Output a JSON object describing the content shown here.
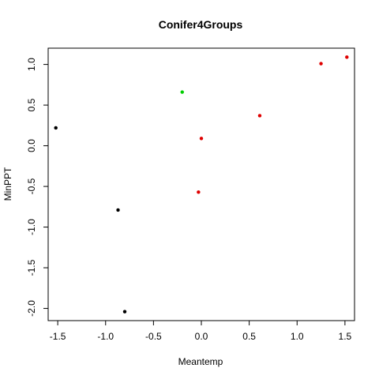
{
  "chart_data": {
    "type": "scatter",
    "title": "Conifer4Groups",
    "xlabel": "Meantemp",
    "ylabel": "MinPPT",
    "xlim": [
      -1.6,
      1.6
    ],
    "ylim": [
      -2.15,
      1.2
    ],
    "x_ticks": [
      -1.5,
      -1.0,
      -0.5,
      0.0,
      0.5,
      1.0,
      1.5
    ],
    "x_tick_labels": [
      "-1.5",
      "-1.0",
      "-0.5",
      "0.0",
      "0.5",
      "1.0",
      "1.5"
    ],
    "y_ticks": [
      -2.0,
      -1.5,
      -1.0,
      -0.5,
      0.0,
      0.5,
      1.0
    ],
    "y_tick_labels": [
      "-2.0",
      "-1.5",
      "-1.0",
      "-0.5",
      "0.0",
      "0.5",
      "1.0"
    ],
    "grid": false,
    "legend": "none",
    "series": [
      {
        "color": "#000000",
        "points": [
          {
            "x": -1.52,
            "y": 0.22
          },
          {
            "x": -0.87,
            "y": -0.79
          },
          {
            "x": -0.8,
            "y": -2.04
          }
        ]
      },
      {
        "color": "#00cd00",
        "points": [
          {
            "x": -0.2,
            "y": 0.66
          }
        ]
      },
      {
        "color": "#df0000",
        "points": [
          {
            "x": 0.0,
            "y": 0.09
          },
          {
            "x": -0.03,
            "y": -0.57
          },
          {
            "x": 0.61,
            "y": 0.37
          },
          {
            "x": 1.25,
            "y": 1.01
          },
          {
            "x": 1.52,
            "y": 1.09
          }
        ]
      }
    ]
  }
}
